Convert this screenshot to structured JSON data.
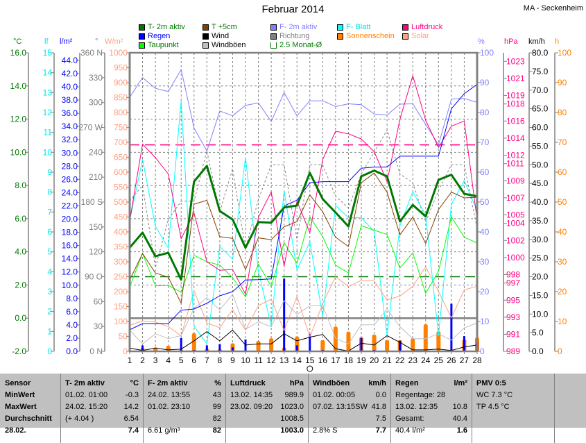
{
  "title": "Februar 2014",
  "station": "MA - Seckenheim",
  "legend": [
    {
      "label": "T- 2m aktiv",
      "color": "#007800",
      "text_color": "#007800"
    },
    {
      "label": "Regen",
      "color": "#0000ff",
      "text_color": "#0000ff"
    },
    {
      "label": "Taupunkt",
      "color": "#00ff00",
      "text_color": "#007800"
    },
    {
      "label": "T +5cm",
      "color": "#804000",
      "text_color": "#007800"
    },
    {
      "label": "Wind",
      "color": "#000000",
      "text_color": "#000000"
    },
    {
      "label": "Windböen",
      "color": "#c0c0c0",
      "text_color": "#000000"
    },
    {
      "label": "F- 2m aktiv",
      "color": "#8080ff",
      "text_color": "#8080ff"
    },
    {
      "label": "Richtung",
      "color": "#808080",
      "text_color": "#808080"
    },
    {
      "label": "2.5 Monat-Ø",
      "color": "bracket",
      "text_color": "#007800"
    },
    {
      "label": "F- Blatt",
      "color": "#00ffff",
      "text_color": "#00e0e0"
    },
    {
      "label": "Sonnenschein",
      "color": "#ff8000",
      "text_color": "#ff8000"
    },
    {
      "label": "Luftdruck",
      "color": "#ff0080",
      "text_color": "#ff0080"
    },
    {
      "label": "Solar",
      "color": "#ffa080",
      "text_color": "#ffa080"
    }
  ],
  "chart_data": {
    "type": "line",
    "title": "Februar 2014",
    "xlabel": "",
    "x": [
      1,
      2,
      3,
      4,
      5,
      6,
      7,
      8,
      9,
      10,
      11,
      12,
      13,
      14,
      15,
      16,
      17,
      18,
      19,
      20,
      21,
      22,
      23,
      24,
      25,
      26,
      27,
      28
    ],
    "grid": true,
    "axes": {
      "temp": {
        "unit": "°C",
        "color": "#007800",
        "min": -2,
        "max": 16,
        "side": "left",
        "ticks": [
          "-2.0",
          "0.0",
          "2.0",
          "4.0",
          "6.0",
          "8.0",
          "10.0",
          "12.0",
          "14.0",
          "16.0"
        ]
      },
      "leaf": {
        "unit": "lf",
        "color": "#00e8e8",
        "min": 0,
        "max": 15,
        "side": "left",
        "ticks": [
          "0",
          "1",
          "2",
          "3",
          "4",
          "5",
          "6",
          "7",
          "8",
          "9",
          "10",
          "11",
          "12",
          "13",
          "14",
          "15"
        ]
      },
      "rain": {
        "unit": "l/m²",
        "color": "#0000ff",
        "min": 0,
        "max": 45.15,
        "side": "left",
        "ticks": [
          "0.0",
          "2.0",
          "4.0",
          "6.0",
          "8.0",
          "10.0",
          "12.0",
          "14.0",
          "16.0",
          "18.0",
          "20.0",
          "22.0",
          "24.0",
          "26.0",
          "28.0",
          "30.0",
          "32.0",
          "34.0",
          "36.0",
          "38.0",
          "40.0",
          "42.0",
          "44.0"
        ]
      },
      "dir": {
        "unit": "°",
        "color": "#808080",
        "min": 0,
        "max": 360,
        "side": "left",
        "ticks": [
          "0 N",
          "30",
          "60",
          "90 O",
          "120",
          "150",
          "180 S",
          "210",
          "240",
          "270 W",
          "300",
          "330",
          "360 N"
        ]
      },
      "solar": {
        "unit": "W/m²",
        "color": "#ffa080",
        "min": 0,
        "max": 1000,
        "side": "left",
        "ticks": [
          "0",
          "50",
          "100",
          "150",
          "200",
          "250",
          "300",
          "350",
          "400",
          "450",
          "500",
          "550",
          "600",
          "650",
          "700",
          "750",
          "800",
          "850",
          "900",
          "950",
          "1000"
        ]
      },
      "hum": {
        "unit": "%",
        "color": "#8080ff",
        "min": 0,
        "max": 100,
        "side": "right",
        "ticks": [
          "0",
          "10",
          "20",
          "30",
          "40",
          "50",
          "60",
          "70",
          "80",
          "90",
          "100"
        ]
      },
      "press": {
        "unit": "hPa",
        "color": "#ff0080",
        "min": 989,
        "max": 1024,
        "side": "right",
        "ticks": [
          "989",
          "991",
          "993",
          "995",
          "997",
          "998",
          "1000",
          "1002",
          "1004",
          "1005",
          "1007",
          "1009",
          "1011",
          "1012",
          "1014",
          "1016",
          "1018",
          "1019",
          "1021",
          "1023"
        ]
      },
      "wind": {
        "unit": "km/h",
        "color": "#000000",
        "min": 0,
        "max": 80,
        "side": "right",
        "ticks": [
          "0.0",
          "5.0",
          "10.0",
          "15.0",
          "20.0",
          "25.0",
          "30.0",
          "35.0",
          "40.0",
          "45.0",
          "50.0",
          "55.0",
          "60.0",
          "65.0",
          "70.0",
          "75.0",
          "80.0"
        ]
      },
      "sun": {
        "unit": "h",
        "color": "#ff8000",
        "min": 0,
        "max": 100,
        "side": "right",
        "ticks": [
          "0",
          "10",
          "20",
          "30",
          "40",
          "50",
          "60",
          "70",
          "80",
          "90",
          "100"
        ]
      }
    },
    "series": [
      {
        "name": "Solar",
        "axis": "solar",
        "kind": "line",
        "color": "#ffa080",
        "width": 1,
        "values": [
          87,
          102,
          98,
          83,
          52,
          203,
          95,
          79,
          139,
          71,
          153,
          175,
          69,
          184,
          48,
          160,
          250,
          217,
          238,
          236,
          172,
          185,
          218,
          283,
          201,
          112,
          206,
          218
        ]
      },
      {
        "name": "Windböen",
        "axis": "wind",
        "kind": "line",
        "color": "#c0c0c0",
        "width": 1,
        "values": [
          5.7,
          2.0,
          4.7,
          3.4,
          4.2,
          11.5,
          14.4,
          11.1,
          15.3,
          5.9,
          7.9,
          6.6,
          13.6,
          9.9,
          12.2,
          12.3,
          3.5,
          2.0,
          7.1,
          7.1,
          11.3,
          6.6,
          3.4,
          3.4,
          4.7,
          3.0,
          6.3,
          7.6
        ]
      },
      {
        "name": "Richtung",
        "axis": "dir",
        "kind": "dashed",
        "color": "#808080",
        "width": 1,
        "values": [
          181,
          200,
          101,
          159,
          181,
          181,
          242,
          168,
          220,
          123,
          183,
          225,
          225,
          135,
          225,
          225,
          187,
          173,
          214,
          240,
          267,
          214,
          203,
          156,
          194,
          225,
          225,
          148
        ]
      },
      {
        "name": "F- 2m aktiv",
        "axis": "hum",
        "kind": "line",
        "color": "#8080ff",
        "width": 1,
        "values": [
          85.1,
          91.7,
          88.1,
          87.0,
          94.4,
          74.8,
          67.1,
          80.5,
          78.9,
          82.4,
          83.2,
          77.0,
          86.7,
          78.9,
          83.9,
          83.9,
          82.0,
          82.9,
          82.6,
          79.5,
          79.1,
          82.8,
          82.9,
          76.0,
          69.2,
          84.5,
          84.7,
          83.4
        ]
      },
      {
        "name": "F- Blatt",
        "axis": "leaf",
        "kind": "line",
        "color": "#00ffff",
        "width": 1,
        "values": [
          6.55,
          9.65,
          6.28,
          5.19,
          12.59,
          1.26,
          0.38,
          5.27,
          4.63,
          9.74,
          4.06,
          1.26,
          8.07,
          4.09,
          5.5,
          1.78,
          7.33,
          6.72,
          6.72,
          6.02,
          0.79,
          6.31,
          8.02,
          6.84,
          0.79,
          7.39,
          8.58,
          7.07
        ]
      },
      {
        "name": "Taupunkt",
        "axis": "temp",
        "kind": "line",
        "color": "#00ff00",
        "width": 1,
        "values": [
          1.88,
          3.9,
          1.95,
          1.98,
          1.56,
          3.79,
          3.41,
          3.2,
          2.44,
          1.28,
          3.27,
          1.91,
          4.56,
          3.3,
          6.11,
          4.92,
          3.2,
          2.72,
          5.58,
          5.3,
          5.05,
          3.02,
          3.94,
          1.5,
          2.83,
          6.11,
          4.88,
          4.53
        ]
      },
      {
        "name": "Luftdruck",
        "axis": "press",
        "kind": "line",
        "color": "#ff0080",
        "width": 1,
        "values": [
          1004.3,
          1013.3,
          1011.7,
          1009.8,
          1002.2,
          1005.2,
          999.5,
          998.5,
          998.6,
          995.7,
          1004.7,
          1007.7,
          999.0,
          1006.6,
          1002.9,
          1011.5,
          1014.8,
          1014.5,
          1013.9,
          1012.4,
          1008.9,
          1016.2,
          1021.3,
          1016.1,
          1012.9,
          1015.4,
          1016.0,
          1004.4
        ]
      },
      {
        "name": "Regen",
        "axis": "rain",
        "kind": "line",
        "color": "#0000ff",
        "width": 1,
        "values": [
          3.26,
          4.2,
          4.2,
          4.2,
          6.23,
          6.41,
          7.28,
          8.4,
          9.03,
          10.78,
          10.85,
          10.96,
          21.99,
          22.86,
          25.49,
          25.66,
          25.66,
          25.66,
          27.7,
          27.87,
          27.87,
          29.52,
          29.52,
          29.52,
          29.52,
          36.69,
          38.97,
          40.37
        ]
      },
      {
        "name": "T +5cm",
        "axis": "temp",
        "kind": "line",
        "color": "#804000",
        "width": 1,
        "values": [
          2.3,
          3.9,
          2.72,
          2.47,
          0.9,
          6.87,
          7.11,
          4.91,
          4.81,
          2.93,
          4.84,
          4.73,
          5.51,
          5.82,
          7.43,
          6.41,
          4.88,
          4.32,
          8.16,
          8.75,
          7.6,
          5.02,
          6.09,
          4.5,
          6.55,
          7.6,
          7.25,
          7.29
        ]
      },
      {
        "name": "Wind",
        "axis": "wind",
        "kind": "line",
        "color": "#000000",
        "width": 1,
        "values": [
          0.9,
          0.25,
          0.9,
          0.4,
          0.6,
          2.8,
          5.3,
          2.8,
          5.7,
          1.7,
          2.0,
          2.0,
          4.7,
          2.8,
          3.8,
          4.5,
          0.7,
          0.1,
          2.2,
          1.7,
          4.2,
          2.4,
          0.4,
          0.4,
          0.6,
          0.25,
          1.2,
          1.7
        ]
      },
      {
        "name": "T- 2m aktiv",
        "axis": "temp",
        "kind": "line",
        "color": "#007800",
        "width": 3,
        "values": [
          4.25,
          5.16,
          3.73,
          3.94,
          2.32,
          8.23,
          9.18,
          6.46,
          5.95,
          4.25,
          5.79,
          5.76,
          6.67,
          6.79,
          8.76,
          7.18,
          6.37,
          5.53,
          8.55,
          8.9,
          8.55,
          5.83,
          6.83,
          6.13,
          8.34,
          8.65,
          7.5,
          7.35
        ]
      }
    ],
    "bars": [
      {
        "name": "Sonnenschein",
        "axis": "sun",
        "color": "#ff8000",
        "values": [
          0.1,
          1.2,
          1.3,
          1.9,
          0.5,
          6.1,
          0.9,
          0.7,
          2.7,
          0,
          3.5,
          4.4,
          1.3,
          5.0,
          0,
          3.8,
          8.3,
          6.6,
          4.8,
          5.6,
          3.8,
          3.8,
          4.4,
          9.1,
          6.7,
          0.6,
          4.0,
          4.7
        ]
      },
      {
        "name": "Regen Tag",
        "axis": "rain",
        "color": "#0000ff",
        "values": [
          0,
          0.9,
          0,
          0,
          2.0,
          0.2,
          0.9,
          1.1,
          0.6,
          1.8,
          0.1,
          0.1,
          11.0,
          0.9,
          2.6,
          0.2,
          0,
          0,
          2.0,
          0.2,
          0,
          1.6,
          0,
          0,
          0,
          7.2,
          2.3,
          1.4
        ]
      }
    ],
    "reference_lines": [
      {
        "name": "2.5 Monat-Ø Luftdruck",
        "axis": "press",
        "value": 1013.2,
        "color": "#ff0080"
      },
      {
        "name": "2.5 Monat-Ø Temperatur",
        "axis": "temp",
        "value": 2.5,
        "color": "#007800"
      }
    ]
  },
  "table": {
    "row_labels": [
      "Sensor",
      "MinWert",
      "MaxWert",
      "Durchschnitt",
      "28.02."
    ],
    "sections": [
      {
        "title": "T- 2m aktiv",
        "unit": "°C",
        "rows": [
          [
            "01.02.  01:00",
            "-0.3"
          ],
          [
            "24.02.  15:20",
            "14.2"
          ],
          [
            "(+ 4.04 )",
            "6.54"
          ],
          [
            "",
            "7.4"
          ]
        ]
      },
      {
        "title": "F- 2m aktiv",
        "unit": "%",
        "rows": [
          [
            "24.02.  13:55",
            "43"
          ],
          [
            "01.02.  23:10",
            "99"
          ],
          [
            "",
            "82"
          ],
          [
            "6.61 g/m³",
            "82"
          ]
        ]
      },
      {
        "title": "Luftdruck",
        "unit": "hPa",
        "rows": [
          [
            "13.02.  14:35",
            "989.9"
          ],
          [
            "23.02.  09:20",
            "1023.0"
          ],
          [
            "",
            "1008.5"
          ],
          [
            "",
            "1003.0"
          ]
        ]
      },
      {
        "title": "Windböen",
        "unit": "km/h",
        "rows": [
          [
            "01.02.  00:05",
            "0.0"
          ],
          [
            "07.02.  13:15SW",
            "41.8"
          ],
          [
            "",
            "7.5"
          ],
          [
            "2.8% S",
            "7.7"
          ]
        ]
      },
      {
        "title": "Regen",
        "unit": "l/m²",
        "rows": [
          [
            "Regentage: 28",
            ""
          ],
          [
            "13.02.  12:35",
            "10.8"
          ],
          [
            "Gesamt:",
            "40.4"
          ],
          [
            "40.4 l/m²",
            "1.6"
          ]
        ]
      },
      {
        "title": "PMV 0:5",
        "unit": "",
        "rows": [
          [
            "WC 7.3 °C",
            ""
          ],
          [
            "TP 4.5 °C",
            ""
          ],
          [
            "",
            ""
          ],
          [
            "",
            ""
          ]
        ]
      }
    ]
  }
}
